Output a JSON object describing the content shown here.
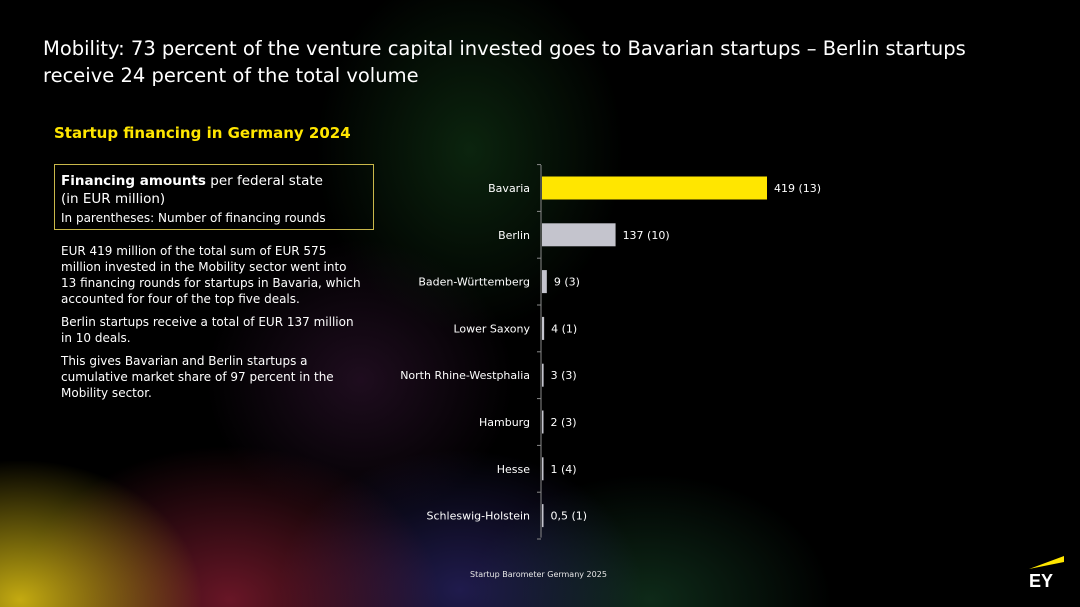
{
  "headline": "Mobility: 73 percent of the venture capital invested goes to Bavarian startups – Berlin startups receive 24 percent of the total volume",
  "subtitle": "Startup financing in Germany 2024",
  "legend": {
    "bold": "Financing amounts",
    "rest": " per federal state",
    "line2": "(in EUR million)",
    "line3": "In parentheses: Number of financing rounds"
  },
  "paragraphs": {
    "p1": "EUR 419 million of the total sum of EUR 575 million invested in the Mobility sector went into 13 financing rounds for startups in Bavaria, which accounted for four of the top five deals.",
    "p2": "Berlin startups receive a total of EUR 137 million in 10 deals.",
    "p3": "This gives Bavarian and Berlin startups a cumulative market share of 97 percent in the Mobility sector."
  },
  "footer": "Startup Barometer Germany 2025",
  "logo_text": "EY",
  "colors": {
    "highlight": "#ffe600",
    "bar": "#c4c4cd",
    "axis": "#8a8a8a"
  },
  "chart_data": {
    "type": "bar",
    "orientation": "horizontal",
    "categories": [
      "Bavaria",
      "Berlin",
      "Baden-Württemberg",
      "Lower Saxony",
      "North Rhine-Westphalia",
      "Hamburg",
      "Hesse",
      "Schleswig-Holstein"
    ],
    "values": [
      419,
      137,
      9,
      4,
      3,
      2,
      1,
      0.5
    ],
    "rounds": [
      13,
      10,
      3,
      1,
      3,
      3,
      4,
      1
    ],
    "data_labels": [
      "419 (13)",
      "137 (10)",
      "9 (3)",
      "4 (1)",
      "3 (3)",
      "2 (3)",
      "1 (4)",
      "0,5 (1)"
    ],
    "highlight_category": "Bavaria",
    "xlim": [
      0,
      419
    ]
  }
}
